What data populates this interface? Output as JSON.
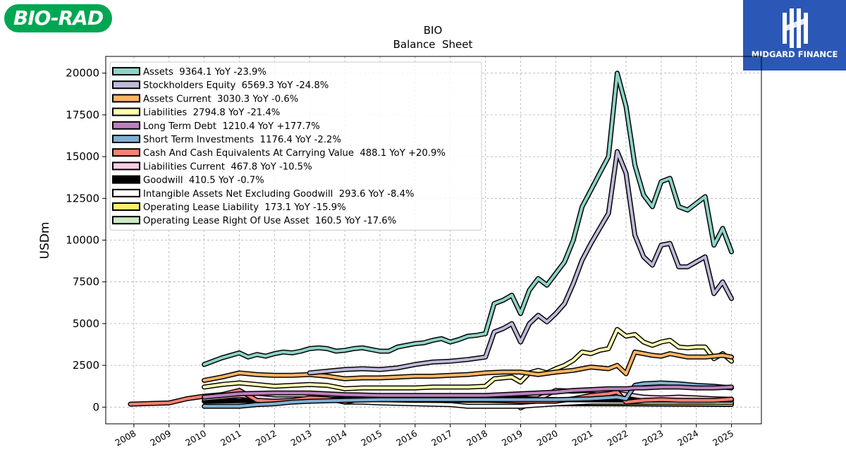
{
  "logos": {
    "left_text": "BIO-RAD",
    "right_text": "MIDGARD FINANCE"
  },
  "colors": {
    "bio_rad_green": "#00a651",
    "midgard_blue": "#2b57b6"
  },
  "chart_data": {
    "type": "line",
    "title": "BIO",
    "subtitle": "Balance  Sheet",
    "ylabel": "USDm",
    "xlabel": "",
    "ylim": [
      -1000,
      21000
    ],
    "xlim": [
      2007.2,
      2025.85
    ],
    "yticks": [
      0,
      2500,
      5000,
      7500,
      10000,
      12500,
      15000,
      17500,
      20000
    ],
    "xticks": [
      2008,
      2009,
      2010,
      2011,
      2012,
      2013,
      2014,
      2015,
      2016,
      2017,
      2018,
      2019,
      2020,
      2021,
      2022,
      2023,
      2024,
      2025
    ],
    "grid": true,
    "legend_position": "top-left",
    "series": [
      {
        "name": "Assets",
        "legend": "Assets  9364.1 YoY -23.9%",
        "color": "#8dd3c7",
        "x": [
          2010,
          2010.5,
          2011,
          2011.25,
          2011.5,
          2011.75,
          2012,
          2012.25,
          2012.5,
          2012.75,
          2013,
          2013.25,
          2013.5,
          2013.75,
          2014,
          2014.25,
          2014.5,
          2014.75,
          2015,
          2015.25,
          2015.5,
          2015.75,
          2016,
          2016.25,
          2016.5,
          2016.75,
          2017,
          2017.25,
          2017.5,
          2017.75,
          2018,
          2018.25,
          2018.5,
          2018.75,
          2019,
          2019.25,
          2019.5,
          2019.75,
          2020,
          2020.25,
          2020.5,
          2020.75,
          2021,
          2021.25,
          2021.5,
          2021.75,
          2022,
          2022.25,
          2022.5,
          2022.75,
          2023,
          2023.25,
          2023.5,
          2023.75,
          2024,
          2024.25,
          2024.5,
          2024.75,
          2025
        ],
        "y": [
          2550,
          2950,
          3250,
          3000,
          3150,
          3050,
          3200,
          3300,
          3250,
          3350,
          3500,
          3550,
          3500,
          3350,
          3400,
          3500,
          3550,
          3450,
          3350,
          3350,
          3600,
          3700,
          3800,
          3850,
          4000,
          4100,
          3900,
          4050,
          4250,
          4300,
          4400,
          6200,
          6400,
          6700,
          5600,
          7000,
          7700,
          7300,
          8000,
          8700,
          10000,
          12000,
          13000,
          14000,
          15000,
          20000,
          18000,
          14500,
          12700,
          12000,
          13500,
          13700,
          12000,
          11800,
          12200,
          12600,
          9700,
          10700,
          9300
        ]
      },
      {
        "name": "Stockholders Equity",
        "legend": "Stockholders Equity  6569.3 YoY -24.8%",
        "color": "#bebada",
        "x": [
          2013,
          2013.5,
          2014,
          2014.5,
          2015,
          2015.5,
          2016,
          2016.5,
          2017,
          2017.5,
          2018,
          2018.25,
          2018.5,
          2018.75,
          2019,
          2019.25,
          2019.5,
          2019.75,
          2020,
          2020.25,
          2020.5,
          2020.75,
          2021,
          2021.25,
          2021.5,
          2021.75,
          2022,
          2022.25,
          2022.5,
          2022.75,
          2023,
          2023.25,
          2023.5,
          2023.75,
          2024,
          2024.25,
          2024.5,
          2024.75,
          2025
        ],
        "y": [
          2050,
          2150,
          2250,
          2300,
          2250,
          2350,
          2550,
          2700,
          2750,
          2850,
          3000,
          4500,
          4700,
          5000,
          3900,
          5000,
          5500,
          5100,
          5600,
          6200,
          7400,
          8800,
          9800,
          10700,
          11600,
          15300,
          14000,
          10300,
          9000,
          8500,
          9700,
          9800,
          8400,
          8400,
          8700,
          9000,
          6800,
          7500,
          6500
        ]
      },
      {
        "name": "Assets Current",
        "legend": "Assets Current  3030.3 YoY -0.6%",
        "color": "#fdb462",
        "x": [
          2010,
          2010.5,
          2011,
          2011.5,
          2012,
          2012.5,
          2013,
          2013.5,
          2014,
          2014.5,
          2015,
          2015.5,
          2016,
          2016.5,
          2017,
          2017.5,
          2018,
          2018.5,
          2019,
          2019.5,
          2020,
          2020.5,
          2021,
          2021.5,
          2021.75,
          2022,
          2022.25,
          2022.5,
          2022.75,
          2023,
          2023.25,
          2023.5,
          2023.75,
          2024,
          2024.25,
          2024.5,
          2024.75,
          2025
        ],
        "y": [
          1600,
          1800,
          2050,
          1950,
          1900,
          1900,
          1950,
          1850,
          1700,
          1750,
          1750,
          1800,
          1850,
          1850,
          1900,
          1950,
          2050,
          2100,
          2100,
          1950,
          2100,
          2200,
          2400,
          2300,
          2500,
          2000,
          3300,
          3200,
          3100,
          3050,
          3200,
          3100,
          3000,
          3000,
          3000,
          3050,
          3100,
          3000
        ]
      },
      {
        "name": "Liabilities",
        "legend": "Liabilities  2794.8 YoY -21.4%",
        "color": "#ffffb3",
        "x": [
          2010,
          2010.5,
          2011,
          2011.5,
          2012,
          2012.5,
          2013,
          2013.5,
          2014,
          2014.5,
          2015,
          2015.5,
          2016,
          2016.5,
          2017,
          2017.5,
          2018,
          2018.25,
          2018.5,
          2018.75,
          2019,
          2019.25,
          2019.5,
          2019.75,
          2020,
          2020.25,
          2020.5,
          2020.75,
          2021,
          2021.25,
          2021.5,
          2021.75,
          2022,
          2022.25,
          2022.5,
          2022.75,
          2023,
          2023.25,
          2023.5,
          2023.75,
          2024,
          2024.25,
          2024.5,
          2024.75,
          2025
        ],
        "y": [
          1200,
          1350,
          1450,
          1350,
          1250,
          1300,
          1350,
          1300,
          1100,
          1150,
          1150,
          1150,
          1150,
          1200,
          1200,
          1200,
          1250,
          1700,
          1750,
          1800,
          1500,
          2050,
          2200,
          2050,
          2300,
          2500,
          2800,
          3300,
          3200,
          3400,
          3500,
          4650,
          4250,
          4350,
          3900,
          3700,
          3900,
          4000,
          3600,
          3550,
          3600,
          3600,
          2900,
          3200,
          2750
        ]
      },
      {
        "name": "Long Term Debt",
        "legend": "Long Term Debt  1210.4 YoY +177.7%",
        "color": "#bc80bd",
        "x": [
          2010,
          2011,
          2012,
          2013,
          2014,
          2015,
          2016,
          2017,
          2018,
          2019,
          2020,
          2020.5,
          2021,
          2021.5,
          2022,
          2022.25,
          2022.5,
          2023,
          2023.5,
          2024,
          2024.5,
          2025
        ],
        "y": [
          600,
          800,
          850,
          850,
          750,
          700,
          700,
          700,
          700,
          800,
          900,
          1000,
          1050,
          1100,
          1100,
          1150,
          1150,
          1200,
          1200,
          1150,
          1150,
          1200
        ]
      },
      {
        "name": "Short Term Investments",
        "legend": "Short Term Investments  1176.4 YoY -2.2%",
        "color": "#80b1d3",
        "x": [
          2010,
          2011,
          2011.5,
          2012,
          2012.5,
          2013,
          2014,
          2015,
          2016,
          2017,
          2018,
          2019,
          2020,
          2021,
          2021.75,
          2022,
          2022.25,
          2022.5,
          2023,
          2023.5,
          2024,
          2024.5,
          2025
        ],
        "y": [
          50,
          50,
          150,
          200,
          300,
          350,
          400,
          450,
          450,
          450,
          450,
          450,
          450,
          500,
          600,
          500,
          1300,
          1400,
          1450,
          1400,
          1300,
          1250,
          1150
        ]
      },
      {
        "name": "Cash And Cash Equivalents At Carrying Value",
        "legend": "Cash And Cash Equivalents At Carrying Value  488.1 YoY +20.9%",
        "color": "#fb8072",
        "x": [
          2007.9,
          2008.5,
          2009,
          2009.5,
          2010,
          2010.5,
          2011,
          2011.25,
          2011.5,
          2012,
          2012.5,
          2013,
          2013.5,
          2014,
          2014.5,
          2015,
          2016,
          2017,
          2018,
          2019,
          2020,
          2020.5,
          2021,
          2021.5,
          2021.75,
          2022,
          2022.5,
          2023,
          2023.5,
          2024,
          2024.5,
          2025
        ],
        "y": [
          180,
          220,
          250,
          500,
          650,
          750,
          1000,
          700,
          400,
          350,
          400,
          550,
          500,
          300,
          500,
          450,
          400,
          400,
          400,
          350,
          350,
          500,
          700,
          800,
          900,
          300,
          400,
          450,
          400,
          400,
          400,
          480
        ]
      },
      {
        "name": "Liabilities Current",
        "legend": "Liabilities Current  467.8 YoY -10.5%",
        "color": "#fccde5",
        "x": [
          2010,
          2010.5,
          2011,
          2011.5,
          2012,
          2013,
          2014,
          2015,
          2016,
          2017,
          2018,
          2019,
          2019.5,
          2020,
          2020.5,
          2021,
          2021.5,
          2022,
          2022.5,
          2023,
          2023.5,
          2024,
          2024.5,
          2025
        ],
        "y": [
          500,
          600,
          700,
          600,
          500,
          500,
          450,
          450,
          450,
          450,
          450,
          450,
          500,
          1000,
          950,
          1000,
          900,
          750,
          600,
          550,
          600,
          550,
          500,
          470
        ]
      },
      {
        "name": "Goodwill",
        "legend": "Goodwill  410.5 YoY -0.7%",
        "color": "#000000",
        "x": [
          2010,
          2011,
          2012,
          2013,
          2014,
          2015,
          2016,
          2017,
          2018,
          2019,
          2020,
          2021,
          2022,
          2023,
          2024,
          2025
        ],
        "y": [
          350,
          380,
          420,
          450,
          480,
          500,
          520,
          530,
          530,
          530,
          450,
          430,
          420,
          420,
          415,
          410
        ]
      },
      {
        "name": "Intangible Assets Net Excluding Goodwill",
        "legend": "Intangible Assets Net Excluding Goodwill  293.6 YoY -8.4%",
        "color": "#ffffff",
        "x": [
          2014,
          2014.5,
          2015,
          2016,
          2017,
          2017.5,
          2018,
          2019,
          2020,
          2021,
          2022,
          2023,
          2024,
          2025
        ],
        "y": [
          300,
          300,
          250,
          200,
          150,
          50,
          50,
          50,
          200,
          300,
          300,
          300,
          300,
          290
        ]
      },
      {
        "name": "Operating Lease Liability",
        "legend": "Operating Lease Liability  173.1 YoY -15.9%",
        "color": "#ffed6f",
        "x": [
          2019,
          2019.5,
          2020,
          2021,
          2022,
          2023,
          2024,
          2025
        ],
        "y": [
          220,
          230,
          230,
          220,
          210,
          200,
          190,
          175
        ]
      },
      {
        "name": "Operating Lease Right Of Use Asset",
        "legend": "Operating Lease Right Of Use Asset  160.5 YoY -17.6%",
        "color": "#ccebc5",
        "x": [
          2019,
          2019.25,
          2020,
          2021,
          2022,
          2023,
          2024,
          2025
        ],
        "y": [
          -50,
          200,
          200,
          200,
          190,
          180,
          170,
          160
        ]
      }
    ]
  }
}
